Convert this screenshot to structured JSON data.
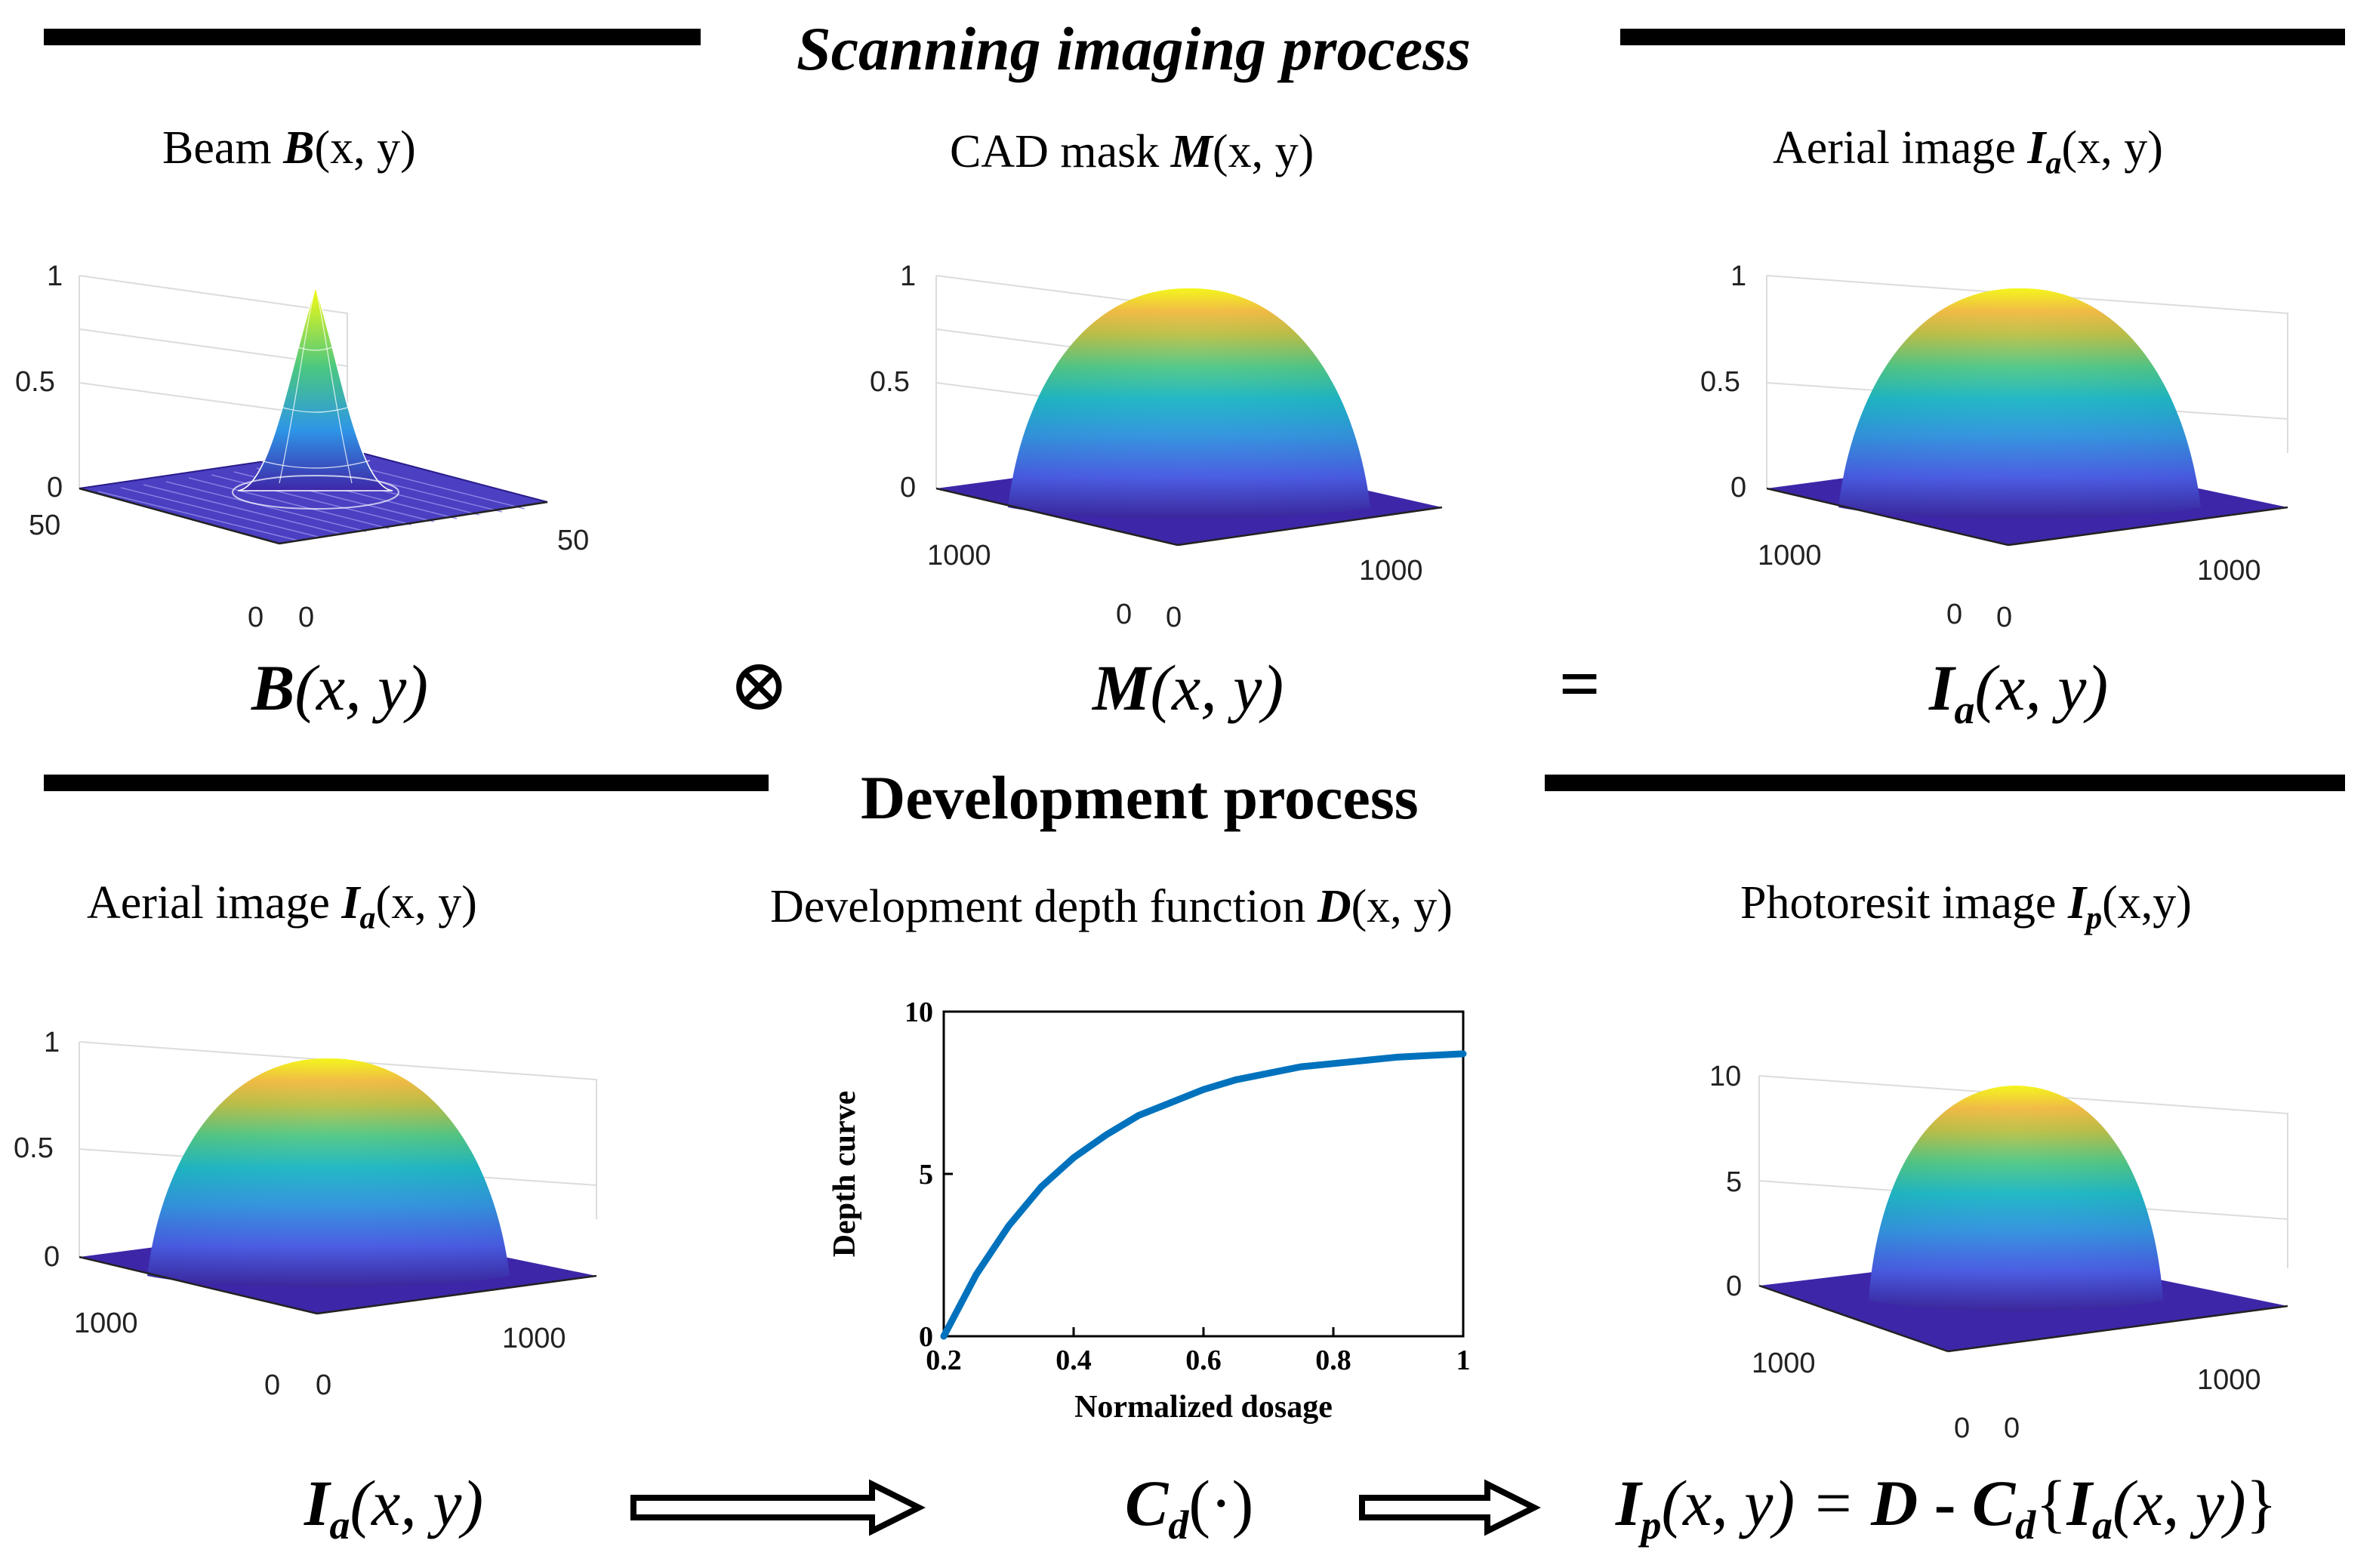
{
  "sections": {
    "scanning": "Scanning imaging process",
    "development": "Development process"
  },
  "top": {
    "beam": {
      "title_prefix": "Beam ",
      "symbol": "B",
      "args": "(x, y)",
      "z_ticks": [
        "1",
        "0.5",
        "0"
      ],
      "x_ticks": [
        "50",
        "0"
      ],
      "y_ticks": [
        "0",
        "50"
      ]
    },
    "mask": {
      "title_prefix": "CAD mask ",
      "symbol": "M",
      "args": "(x, y)",
      "z_ticks": [
        "1",
        "0.5",
        "0"
      ],
      "x_ticks": [
        "1000",
        "0"
      ],
      "y_ticks": [
        "0",
        "1000"
      ]
    },
    "aerial": {
      "title_prefix": "Aerial image ",
      "symbol": "I",
      "sub": "a",
      "args": "(x, y)",
      "z_ticks": [
        "1",
        "0.5",
        "0"
      ],
      "x_ticks": [
        "1000",
        "0"
      ],
      "y_ticks": [
        "0",
        "1000"
      ]
    },
    "formula": {
      "b_sym": "B",
      "b_args": "(x, y)",
      "conv": "⊗",
      "m_sym": "M",
      "m_args": "(x, y)",
      "eq": "=",
      "i_sym": "I",
      "i_sub": "a",
      "i_args": "(x, y)"
    }
  },
  "bottom": {
    "aerial": {
      "title_prefix": "Aerial image ",
      "symbol": "I",
      "sub": "a",
      "args": "(x, y)",
      "z_ticks": [
        "1",
        "0.5",
        "0"
      ],
      "x_ticks": [
        "1000",
        "0"
      ],
      "y_ticks": [
        "0",
        "1000"
      ]
    },
    "depth": {
      "title_prefix": "Development depth function ",
      "symbol": "D",
      "args": "(x, y)"
    },
    "photoresist": {
      "title_prefix": "Photoresit image ",
      "symbol": "I",
      "sub": "p",
      "args": "(x,y)",
      "z_ticks": [
        "10",
        "5",
        "0"
      ],
      "x_ticks": [
        "1000",
        "0"
      ],
      "y_ticks": [
        "0",
        "1000"
      ]
    },
    "formula": {
      "i_sym": "I",
      "i_sub": "a",
      "i_args": "(x, y)",
      "c_sym": "C",
      "c_sub": "d",
      "c_args": "(·)",
      "r_i_sym": "I",
      "r_i_sub": "p",
      "r_i_args": "(x, y) = ",
      "r_d": "D",
      "r_minus": " - ",
      "r_c_sym": "C",
      "r_c_sub": "d",
      "r_open": "{",
      "r_in_sym": "I",
      "r_in_sub": "a",
      "r_in_args": "(x, y)",
      "r_close": "}"
    }
  },
  "chart_data": {
    "type": "line",
    "title": "",
    "xlabel": "Normalized dosage",
    "ylabel": "Depth curve",
    "xlim": [
      0.2,
      1
    ],
    "ylim": [
      0,
      10
    ],
    "x_ticks": [
      0.2,
      0.4,
      0.6,
      0.8,
      1
    ],
    "y_ticks": [
      0,
      5,
      10
    ],
    "series": [
      {
        "name": "Depth curve",
        "x": [
          0.2,
          0.25,
          0.3,
          0.35,
          0.4,
          0.45,
          0.5,
          0.55,
          0.6,
          0.65,
          0.7,
          0.75,
          0.8,
          0.85,
          0.9,
          0.95,
          1.0
        ],
        "y": [
          0,
          1.9,
          3.4,
          4.6,
          5.5,
          6.2,
          6.8,
          7.2,
          7.6,
          7.9,
          8.1,
          8.3,
          8.4,
          8.5,
          8.6,
          8.65,
          8.7
        ],
        "color": "#0072BD"
      }
    ]
  },
  "colors": {
    "rule": "#000000",
    "curve": "#0072BD",
    "base": "#3E26A8",
    "peak": "#F9FB0E"
  }
}
